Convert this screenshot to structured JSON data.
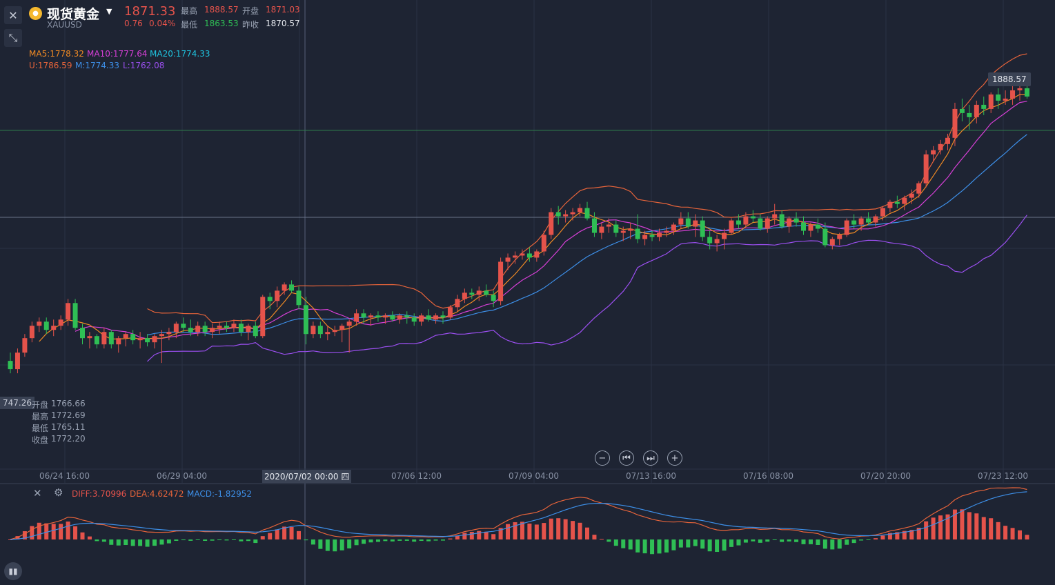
{
  "header": {
    "title": "现货黄金",
    "symbol": "XAUUSD",
    "price": "1871.33",
    "change": "0.76",
    "change_pct": "0.04%",
    "high_label": "最高",
    "high": "1888.57",
    "open_label": "开盘",
    "open": "1871.03",
    "low_label": "最低",
    "low": "1863.53",
    "prev_close_label": "昨收",
    "prev_close": "1870.57"
  },
  "indicators": {
    "ma5": "MA5:1778.32",
    "ma10": "MA10:1777.64",
    "ma20": "MA20:1774.33",
    "boll_u": "U:1786.59",
    "boll_m": "M:1774.33",
    "boll_l": "L:1762.08"
  },
  "crosshair": {
    "price_tag": "747.26",
    "date_tag": "2020/07/02 00:00 四",
    "open_label": "开盘",
    "open": "1766.66",
    "high_label": "最高",
    "high": "1772.69",
    "low_label": "最低",
    "low": "1765.11",
    "close_label": "收盘",
    "close": "1772.20"
  },
  "high_marker": "1888.57",
  "macd_panel": {
    "diff": "DIFF:3.70996",
    "dea": "DEA:4.62472",
    "macd": "MACD:-1.82952"
  },
  "colors": {
    "background": "#1e2433",
    "up": "#e5534b",
    "down": "#2fbf55",
    "ma5": "#f08a24",
    "ma10": "#d63fd6",
    "ma20": "#1fc4e0",
    "boll_u": "#e8643a",
    "boll_m": "#3d8fe8",
    "boll_l": "#9b4ff0"
  },
  "icons": [
    "close-icon",
    "collapse-icon",
    "zoom-out-icon",
    "step-back-icon",
    "step-forward-icon",
    "zoom-in-icon",
    "settings-icon",
    "candles-icon",
    "gold-coin-icon",
    "dropdown-icon"
  ],
  "chart_data": {
    "type": "candlestick",
    "x_ticks": [
      "06/24 16:00",
      "06/29 04:00",
      "2020/07/02 00:00 四",
      "07/06 12:00",
      "07/09 04:00",
      "07/13 16:00",
      "07/16 08:00",
      "07/20 20:00",
      "07/23 12:00"
    ],
    "ylim": [
      1735,
      1892
    ],
    "candles": [
      [
        1754,
        1758,
        1748,
        1750
      ],
      [
        1750,
        1760,
        1748,
        1758
      ],
      [
        1758,
        1767,
        1756,
        1765
      ],
      [
        1765,
        1773,
        1763,
        1771
      ],
      [
        1771,
        1775,
        1768,
        1773
      ],
      [
        1773,
        1775,
        1767,
        1769
      ],
      [
        1769,
        1774,
        1766,
        1771
      ],
      [
        1771,
        1776,
        1769,
        1774
      ],
      [
        1774,
        1784,
        1771,
        1782
      ],
      [
        1782,
        1784,
        1769,
        1770
      ],
      [
        1770,
        1772,
        1762,
        1765
      ],
      [
        1765,
        1768,
        1760,
        1766
      ],
      [
        1766,
        1767,
        1760,
        1762
      ],
      [
        1762,
        1770,
        1760,
        1768
      ],
      [
        1768,
        1769,
        1760,
        1762
      ],
      [
        1762,
        1766,
        1758,
        1765
      ],
      [
        1765,
        1768,
        1761,
        1767
      ],
      [
        1767,
        1769,
        1762,
        1764
      ],
      [
        1764,
        1768,
        1760,
        1765
      ],
      [
        1765,
        1767,
        1761,
        1763
      ],
      [
        1763,
        1767,
        1760,
        1766
      ],
      [
        1766,
        1769,
        1753,
        1767
      ],
      [
        1767,
        1770,
        1764,
        1768
      ],
      [
        1768,
        1773,
        1765,
        1772
      ],
      [
        1772,
        1775,
        1768,
        1770
      ],
      [
        1770,
        1774,
        1766,
        1768
      ],
      [
        1768,
        1773,
        1766,
        1771
      ],
      [
        1771,
        1773,
        1766,
        1768
      ],
      [
        1768,
        1772,
        1765,
        1770
      ],
      [
        1770,
        1773,
        1767,
        1771
      ],
      [
        1771,
        1773,
        1768,
        1770
      ],
      [
        1770,
        1774,
        1768,
        1772
      ],
      [
        1772,
        1774,
        1766,
        1768
      ],
      [
        1768,
        1772,
        1764,
        1771
      ],
      [
        1771,
        1773,
        1765,
        1766
      ],
      [
        1766,
        1786,
        1765,
        1785
      ],
      [
        1785,
        1787,
        1779,
        1783
      ],
      [
        1783,
        1790,
        1780,
        1788
      ],
      [
        1788,
        1792,
        1786,
        1791
      ],
      [
        1791,
        1793,
        1787,
        1788
      ],
      [
        1788,
        1790,
        1779,
        1781
      ],
      [
        1781,
        1785,
        1762,
        1767
      ],
      [
        1767,
        1773,
        1765,
        1771
      ],
      [
        1771,
        1773,
        1765,
        1767
      ],
      [
        1767,
        1771,
        1764,
        1768
      ],
      [
        1768,
        1771,
        1766,
        1769
      ],
      [
        1769,
        1772,
        1763,
        1771
      ],
      [
        1771,
        1774,
        1758,
        1773
      ],
      [
        1773,
        1779,
        1771,
        1777
      ],
      [
        1777,
        1779,
        1772,
        1775
      ],
      [
        1775,
        1777,
        1771,
        1776
      ],
      [
        1776,
        1778,
        1773,
        1775
      ],
      [
        1775,
        1777,
        1772,
        1776
      ],
      [
        1776,
        1778,
        1773,
        1774
      ],
      [
        1774,
        1777,
        1772,
        1776
      ],
      [
        1776,
        1778,
        1772,
        1775
      ],
      [
        1775,
        1777,
        1771,
        1773
      ],
      [
        1773,
        1777,
        1771,
        1776
      ],
      [
        1776,
        1779,
        1773,
        1774
      ],
      [
        1774,
        1777,
        1772,
        1776
      ],
      [
        1776,
        1778,
        1772,
        1775
      ],
      [
        1775,
        1781,
        1774,
        1780
      ],
      [
        1780,
        1786,
        1778,
        1784
      ],
      [
        1784,
        1789,
        1782,
        1787
      ],
      [
        1787,
        1789,
        1784,
        1786
      ],
      [
        1786,
        1790,
        1783,
        1788
      ],
      [
        1788,
        1791,
        1785,
        1786
      ],
      [
        1786,
        1788,
        1780,
        1783
      ],
      [
        1783,
        1804,
        1781,
        1802
      ],
      [
        1802,
        1806,
        1798,
        1804
      ],
      [
        1804,
        1807,
        1801,
        1805
      ],
      [
        1805,
        1808,
        1803,
        1806
      ],
      [
        1806,
        1809,
        1802,
        1804
      ],
      [
        1804,
        1808,
        1802,
        1807
      ],
      [
        1807,
        1817,
        1805,
        1815
      ],
      [
        1815,
        1828,
        1813,
        1826
      ],
      [
        1826,
        1829,
        1820,
        1824
      ],
      [
        1824,
        1827,
        1821,
        1825
      ],
      [
        1825,
        1828,
        1822,
        1826
      ],
      [
        1826,
        1830,
        1824,
        1828
      ],
      [
        1828,
        1831,
        1822,
        1823
      ],
      [
        1823,
        1826,
        1814,
        1816
      ],
      [
        1816,
        1821,
        1813,
        1819
      ],
      [
        1819,
        1823,
        1816,
        1820
      ],
      [
        1820,
        1822,
        1814,
        1816
      ],
      [
        1816,
        1819,
        1812,
        1817
      ],
      [
        1817,
        1821,
        1813,
        1818
      ],
      [
        1818,
        1825,
        1811,
        1813
      ],
      [
        1813,
        1817,
        1810,
        1815
      ],
      [
        1815,
        1817,
        1812,
        1814
      ],
      [
        1814,
        1818,
        1812,
        1816
      ],
      [
        1816,
        1819,
        1814,
        1817
      ],
      [
        1817,
        1821,
        1815,
        1820
      ],
      [
        1820,
        1826,
        1818,
        1823
      ],
      [
        1823,
        1826,
        1818,
        1819
      ],
      [
        1819,
        1825,
        1814,
        1822
      ],
      [
        1822,
        1824,
        1812,
        1814
      ],
      [
        1814,
        1817,
        1808,
        1811
      ],
      [
        1811,
        1815,
        1807,
        1813
      ],
      [
        1813,
        1818,
        1808,
        1816
      ],
      [
        1816,
        1823,
        1815,
        1822
      ],
      [
        1822,
        1825,
        1818,
        1820
      ],
      [
        1820,
        1826,
        1819,
        1824
      ],
      [
        1824,
        1827,
        1821,
        1823
      ],
      [
        1823,
        1825,
        1817,
        1818
      ],
      [
        1818,
        1824,
        1816,
        1823
      ],
      [
        1823,
        1830,
        1820,
        1825
      ],
      [
        1825,
        1827,
        1818,
        1819
      ],
      [
        1819,
        1824,
        1816,
        1823
      ],
      [
        1823,
        1826,
        1819,
        1821
      ],
      [
        1821,
        1824,
        1815,
        1817
      ],
      [
        1817,
        1821,
        1814,
        1820
      ],
      [
        1820,
        1823,
        1816,
        1818
      ],
      [
        1818,
        1821,
        1809,
        1810
      ],
      [
        1810,
        1814,
        1808,
        1813
      ],
      [
        1813,
        1816,
        1810,
        1815
      ],
      [
        1815,
        1823,
        1814,
        1822
      ],
      [
        1822,
        1825,
        1818,
        1820
      ],
      [
        1820,
        1824,
        1817,
        1823
      ],
      [
        1823,
        1826,
        1820,
        1821
      ],
      [
        1821,
        1825,
        1819,
        1824
      ],
      [
        1824,
        1829,
        1822,
        1828
      ],
      [
        1828,
        1832,
        1826,
        1831
      ],
      [
        1831,
        1834,
        1828,
        1830
      ],
      [
        1830,
        1834,
        1827,
        1833
      ],
      [
        1833,
        1837,
        1830,
        1835
      ],
      [
        1835,
        1841,
        1833,
        1840
      ],
      [
        1840,
        1856,
        1838,
        1854
      ],
      [
        1854,
        1858,
        1851,
        1856
      ],
      [
        1856,
        1861,
        1854,
        1859
      ],
      [
        1859,
        1864,
        1856,
        1862
      ],
      [
        1862,
        1879,
        1858,
        1876
      ],
      [
        1876,
        1881,
        1870,
        1874
      ],
      [
        1874,
        1878,
        1866,
        1872
      ],
      [
        1872,
        1880,
        1869,
        1878
      ],
      [
        1878,
        1882,
        1873,
        1876
      ],
      [
        1876,
        1884,
        1874,
        1883
      ],
      [
        1883,
        1886,
        1876,
        1880
      ],
      [
        1880,
        1885,
        1878,
        1881
      ],
      [
        1881,
        1888.57,
        1878,
        1885
      ],
      [
        1885,
        1887,
        1880,
        1886
      ],
      [
        1886,
        1888,
        1881,
        1882
      ]
    ]
  }
}
